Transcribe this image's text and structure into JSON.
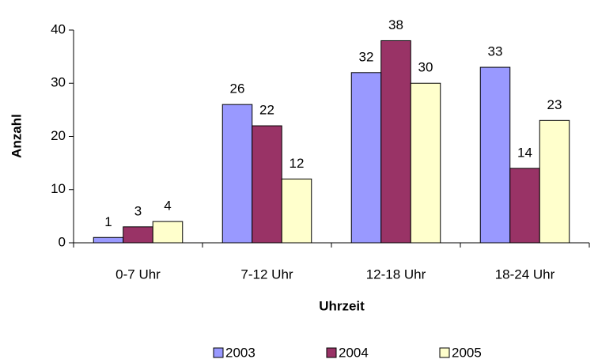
{
  "chart_data": {
    "type": "bar",
    "x_label": "Uhrzeit",
    "y_label": "Anzahl",
    "categories": [
      "0-7 Uhr",
      "7-12 Uhr",
      "12-18 Uhr",
      "18-24 Uhr"
    ],
    "series": [
      {
        "name": "2003",
        "color": "#9999ff",
        "values": [
          1,
          26,
          32,
          33
        ]
      },
      {
        "name": "2004",
        "color": "#993366",
        "values": [
          3,
          22,
          38,
          14
        ]
      },
      {
        "name": "2005",
        "color": "#ffffcc",
        "values": [
          4,
          12,
          30,
          23
        ]
      }
    ],
    "ylim": [
      0,
      40
    ],
    "yticks": [
      0,
      10,
      20,
      30,
      40
    ],
    "grid": false,
    "legend": "bottom"
  }
}
